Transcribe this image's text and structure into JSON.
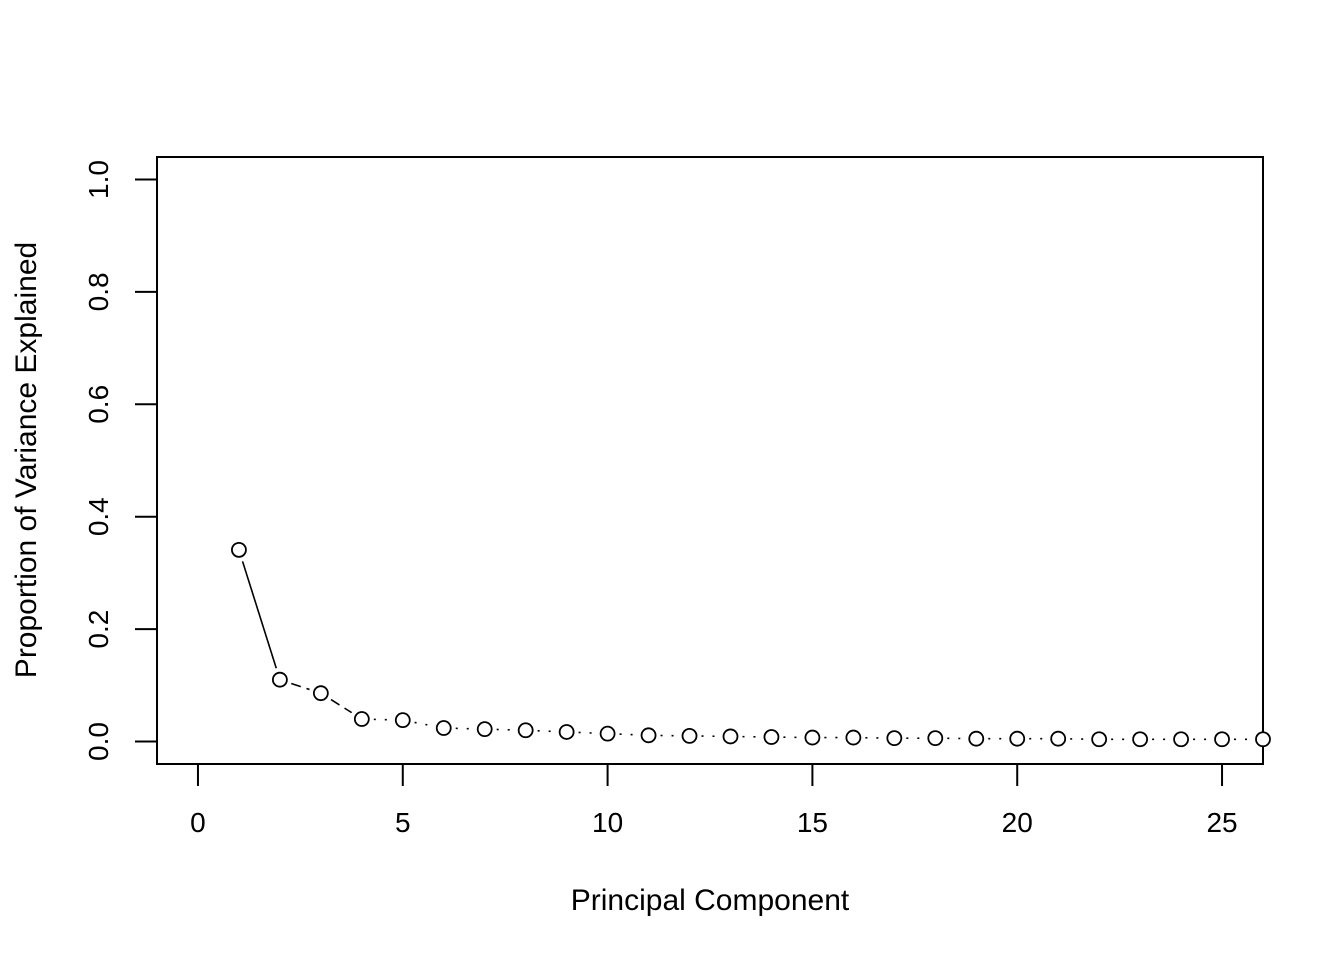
{
  "chart_data": {
    "type": "scatter",
    "title": "",
    "xlabel": "Principal Component",
    "ylabel": "Proportion of Variance Explained",
    "xlim": [
      -1,
      26
    ],
    "ylim": [
      -0.04,
      1.04
    ],
    "x_ticks": [
      0,
      5,
      10,
      15,
      20,
      25
    ],
    "y_ticks": [
      0.0,
      0.2,
      0.4,
      0.6,
      0.8,
      1.0
    ],
    "x_tick_labels": [
      "0",
      "5",
      "10",
      "15",
      "20",
      "25"
    ],
    "y_tick_labels": [
      "0.0",
      "0.2",
      "0.4",
      "0.6",
      "0.8",
      "1.0"
    ],
    "grid": false,
    "marker": "open-circle",
    "line": "connected (solid/dashed/dotted segments)",
    "series": [
      {
        "x": [
          1,
          2,
          3,
          4,
          5,
          6,
          7,
          8,
          9,
          10,
          11,
          12,
          13,
          14,
          15,
          16,
          17,
          18,
          19,
          20,
          21,
          22,
          23,
          24,
          25,
          26
        ],
        "values": [
          0.341,
          0.11,
          0.086,
          0.04,
          0.038,
          0.024,
          0.022,
          0.02,
          0.017,
          0.014,
          0.011,
          0.01,
          0.009,
          0.008,
          0.007,
          0.007,
          0.006,
          0.006,
          0.005,
          0.005,
          0.005,
          0.004,
          0.004,
          0.004,
          0.004,
          0.004
        ]
      }
    ]
  }
}
